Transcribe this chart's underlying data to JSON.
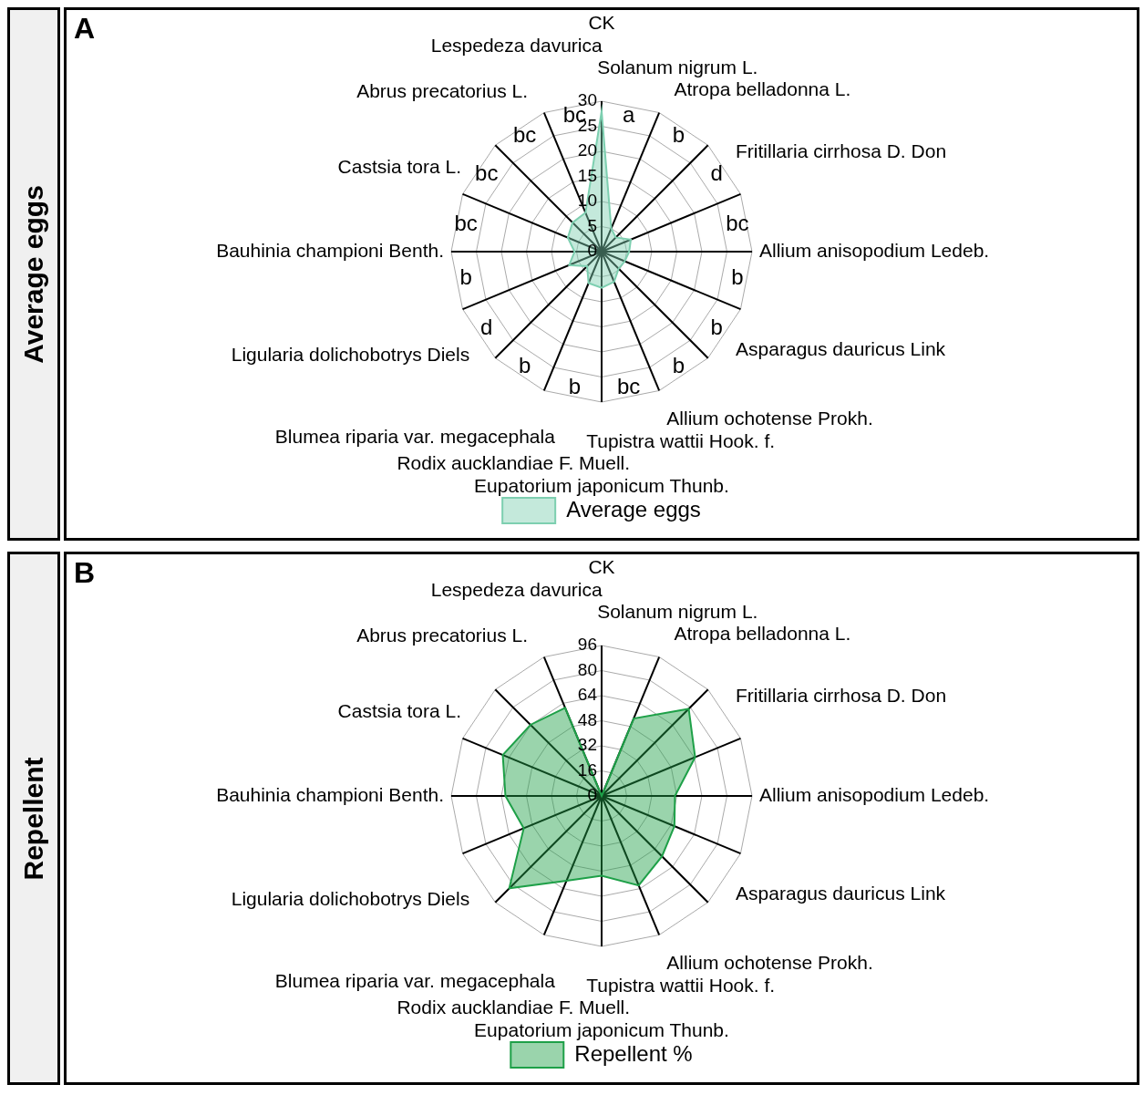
{
  "chart_data": [
    {
      "type": "radar",
      "title": "A",
      "ylabel": "Average eggs",
      "categories": [
        "CK",
        "Solanum nigrum L.",
        "Atropa belladonna L.",
        "Fritillaria cirrhosa D. Don",
        "Allium anisopodium Ledeb.",
        "Asparagus dauricus Link",
        "Allium ochotense Prokh.",
        "Tupistra wattii Hook. f.",
        "Eupatorium japonicum Thunb.",
        "Rodix aucklandiae F. Muell.",
        "Blumea riparia var. megacephala",
        "Ligularia dolichobotrys Diels",
        "Bauhinia championi Benth.",
        "Castsia tora L.",
        "Abrus precatorius L.",
        "Lespedeza davurica"
      ],
      "series": [
        {
          "name": "Average eggs",
          "color": "#7dcfb0",
          "values": [
            28,
            5,
            4,
            6.3,
            5.5,
            5,
            4.8,
            6.5,
            7.2,
            6.8,
            4.1,
            7,
            5.4,
            7.3,
            8.2,
            8.4
          ]
        }
      ],
      "ylim": [
        0,
        30
      ],
      "yticks": [
        0,
        5,
        10,
        15,
        20,
        25,
        30
      ],
      "grid": true,
      "legend": "bottom",
      "annotations": [
        {
          "text": "a",
          "x": "CK"
        },
        {
          "text": "b",
          "x": "Solanum nigrum L."
        },
        {
          "text": "d",
          "x": "Atropa belladonna L."
        },
        {
          "text": "bc",
          "x": "Fritillaria cirrhosa D. Don"
        },
        {
          "text": "b",
          "x": "Allium anisopodium Ledeb."
        },
        {
          "text": "b",
          "x": "Asparagus dauricus Link"
        },
        {
          "text": "b",
          "x": "Allium ochotense Prokh."
        },
        {
          "text": "bc",
          "x": "Tupistra wattii Hook. f."
        },
        {
          "text": "b",
          "x": "Eupatorium japonicum Thunb."
        },
        {
          "text": "b",
          "x": "Rodix aucklandiae F. Muell."
        },
        {
          "text": "d",
          "x": "Blumea riparia var. megacephala"
        },
        {
          "text": "b",
          "x": "Ligularia dolichobotrys Diels"
        },
        {
          "text": "bc",
          "x": "Bauhinia championi Benth."
        },
        {
          "text": "bc",
          "x": "Castsia tora L."
        },
        {
          "text": "bc",
          "x": "Abrus precatorius L."
        },
        {
          "text": "bc",
          "x": "Lespedeza davurica"
        }
      ]
    },
    {
      "type": "radar",
      "title": "B",
      "ylabel": "Repellent",
      "categories": [
        "CK",
        "Solanum nigrum L.",
        "Atropa belladonna L.",
        "Fritillaria cirrhosa D. Don",
        "Allium anisopodium Ledeb.",
        "Asparagus dauricus Link",
        "Allium ochotense Prokh.",
        "Tupistra wattii Hook. f.",
        "Eupatorium japonicum Thunb.",
        "Rodix aucklandiae F. Muell.",
        "Blumea riparia var. megacephala",
        "Ligularia dolichobotrys Diels",
        "Bauhinia championi Benth.",
        "Castsia tora L.",
        "Abrus precatorius L.",
        "Lespedeza davurica"
      ],
      "series": [
        {
          "name": "Repellent %",
          "color": "#1ea048",
          "values": [
            0,
            53.5,
            78.6,
            64.6,
            46.8,
            50.3,
            54.5,
            61.8,
            50.9,
            58.5,
            83.4,
            53.8,
            61.4,
            68.3,
            64.2,
            60.8
          ]
        }
      ],
      "ylim": [
        0,
        96
      ],
      "yticks": [
        0,
        16,
        32,
        48,
        64,
        80,
        96
      ],
      "grid": true,
      "legend": "bottom"
    }
  ]
}
